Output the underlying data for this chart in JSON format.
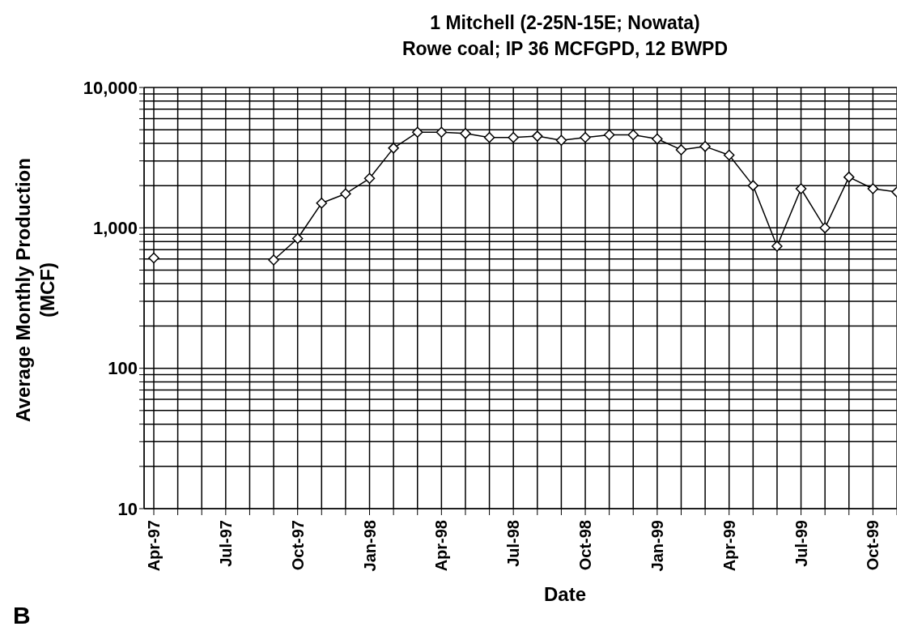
{
  "chart_data": {
    "type": "line",
    "title": "1 Mitchell (2-25N-15E; Nowata)",
    "subtitle": "Rowe coal; IP 36 MCFGPD, 12 BWPD",
    "xlabel": "Date",
    "ylabel": "Average Monthly Production\n(MCF)",
    "categories": [
      "Apr-97",
      null,
      null,
      "Jul-97",
      null,
      null,
      "Oct-97",
      null,
      null,
      "Jan-98",
      null,
      null,
      "Apr-98",
      null,
      null,
      "Jul-98",
      null,
      null,
      "Oct-98",
      null,
      null,
      "Jan-99",
      null,
      null,
      "Apr-99",
      null,
      null,
      "Jul-99",
      null,
      null,
      "Oct-99",
      null
    ],
    "series": [
      {
        "color": "#000000",
        "values": [
          610,
          null,
          null,
          null,
          null,
          590,
          840,
          1500,
          1750,
          2250,
          3700,
          4800,
          4800,
          4700,
          4400,
          4400,
          4500,
          4200,
          4400,
          4600,
          4600,
          4300,
          3600,
          3800,
          3300,
          2000,
          740,
          1900,
          1000,
          2300,
          1900,
          1800
        ]
      }
    ],
    "log": "y",
    "ylim": [
      10,
      10000
    ],
    "yticks": [
      10,
      {
        "value": 20,
        "label": null
      },
      {
        "value": 30,
        "label": null
      },
      {
        "value": 40,
        "label": null
      },
      {
        "value": 50,
        "label": null
      },
      {
        "value": 60,
        "label": null
      },
      {
        "value": 70,
        "label": null
      },
      {
        "value": 80,
        "label": null
      },
      {
        "value": 90,
        "label": null
      },
      100,
      {
        "value": 200,
        "label": null
      },
      {
        "value": 300,
        "label": null
      },
      {
        "value": 400,
        "label": null
      },
      {
        "value": 500,
        "label": null
      },
      {
        "value": 600,
        "label": null
      },
      {
        "value": 700,
        "label": null
      },
      {
        "value": 800,
        "label": null
      },
      {
        "value": 900,
        "label": null
      },
      {
        "value": 1000,
        "label": "1,000"
      },
      {
        "value": 2000,
        "label": null
      },
      {
        "value": 3000,
        "label": null
      },
      {
        "value": 4000,
        "label": null
      },
      {
        "value": 5000,
        "label": null
      },
      {
        "value": 6000,
        "label": null
      },
      {
        "value": 7000,
        "label": null
      },
      {
        "value": 8000,
        "label": null
      },
      {
        "value": 9000,
        "label": null
      },
      {
        "value": 10000,
        "label": "10,000"
      }
    ],
    "grid": true,
    "marker": "diamond",
    "line_style": "solid",
    "legend": false,
    "annotations": [
      "B"
    ]
  }
}
